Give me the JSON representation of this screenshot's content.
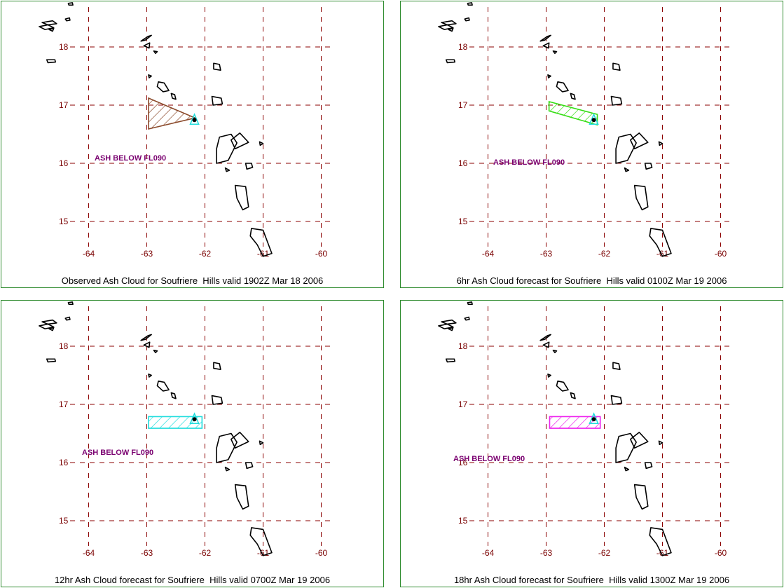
{
  "lat_ticks": [
    "18",
    "17",
    "16",
    "15"
  ],
  "lon_ticks": [
    "-64",
    "-63",
    "-62",
    "-61",
    "-60"
  ],
  "panels": [
    {
      "caption": "Observed Ash Cloud for Soufriere  Hills valid 1902Z Mar 18 2006",
      "ash_label": "ASH BELOW FL090",
      "cloud_color": "#8b4a2b",
      "cloud_polygon_lonlat": [
        [
          -62.97,
          17.12
        ],
        [
          -62.17,
          16.78
        ],
        [
          -62.97,
          16.59
        ]
      ]
    },
    {
      "caption": "6hr Ash Cloud forecast for Soufriere  Hills valid 0100Z Mar 19 2006",
      "ash_label": "ASH BELOW FL090",
      "cloud_color": "#33dd11",
      "cloud_polygon_lonlat": [
        [
          -62.95,
          17.06
        ],
        [
          -62.12,
          16.84
        ],
        [
          -62.12,
          16.66
        ],
        [
          -62.95,
          16.9
        ]
      ]
    },
    {
      "caption": "12hr Ash Cloud forecast for Soufriere  Hills valid 0700Z Mar 19 2006",
      "ash_label": "ASH BELOW FL090",
      "cloud_color": "#22dddd",
      "cloud_polygon_lonlat": [
        [
          -62.97,
          16.79
        ],
        [
          -62.05,
          16.79
        ],
        [
          -62.05,
          16.59
        ],
        [
          -62.97,
          16.59
        ]
      ]
    },
    {
      "caption": "18hr Ash Cloud forecast for Soufriere  Hills valid 1300Z Mar 19 2006",
      "ash_label": "ASH BELOW FL090",
      "cloud_color": "#ee22ee",
      "cloud_polygon_lonlat": [
        [
          -62.94,
          16.79
        ],
        [
          -62.07,
          16.79
        ],
        [
          -62.07,
          16.59
        ],
        [
          -62.94,
          16.59
        ]
      ]
    }
  ],
  "vent_color": "#22dddd"
}
